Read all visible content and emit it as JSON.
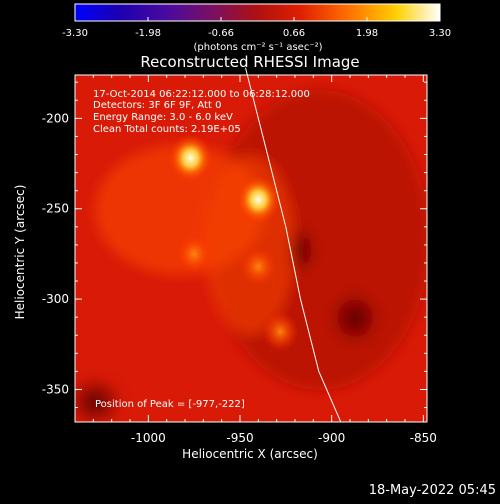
{
  "colorbar": {
    "tick_labels": [
      "-3.30",
      "-1.98",
      "-0.66",
      "0.66",
      "1.98",
      "3.30"
    ],
    "units": "(photons cm⁻² s⁻¹ asec⁻²)",
    "range": [
      -3.3,
      3.3
    ]
  },
  "annotations": {
    "line1": "17-Oct-2014 06:22:12.000 to 06:28:12.000",
    "line2": "Detectors: 3F 6F 9F, Att 0",
    "line3": "Energy Range: 3.0 - 6.0 keV",
    "line4": "Clean    Total counts: 2.19E+05",
    "peak": "Position of Peak = [-977,-222]"
  },
  "footer": {
    "timestamp": "18-May-2022 05:45"
  },
  "colors": {
    "background": "#000000",
    "text": "#ffffff",
    "limb": "#ffffff"
  },
  "chart_data": {
    "type": "heatmap",
    "title": "Reconstructed RHESSI Image",
    "xlabel": "Heliocentric X (arcsec)",
    "ylabel": "Heliocentric Y (arcsec)",
    "xlim": [
      -1040,
      -848
    ],
    "ylim": [
      -368,
      -176
    ],
    "x_ticks": [
      -1000,
      -950,
      -900,
      -850
    ],
    "y_ticks": [
      -200,
      -250,
      -300,
      -350
    ],
    "x_tick_labels": [
      "-1000",
      "-950",
      "-900",
      "-850"
    ],
    "y_tick_labels": [
      "-200",
      "-250",
      "-300",
      "-350"
    ],
    "colormap": "red-temperature",
    "grid": false,
    "sources": [
      {
        "x": -977,
        "y": -222,
        "intensity": 1.0
      },
      {
        "x": -940,
        "y": -245,
        "intensity": 0.95
      },
      {
        "x": -975,
        "y": -275,
        "intensity": 0.55
      },
      {
        "x": -940,
        "y": -282,
        "intensity": 0.5
      },
      {
        "x": -928,
        "y": -318,
        "intensity": 0.45
      }
    ],
    "limb": [
      [
        -947,
        -172
      ],
      [
        -935,
        -220
      ],
      [
        -925,
        -260
      ],
      [
        -917,
        -300
      ],
      [
        -907,
        -340
      ],
      [
        -895,
        -368
      ]
    ],
    "peak": [
      -977,
      -222
    ]
  }
}
